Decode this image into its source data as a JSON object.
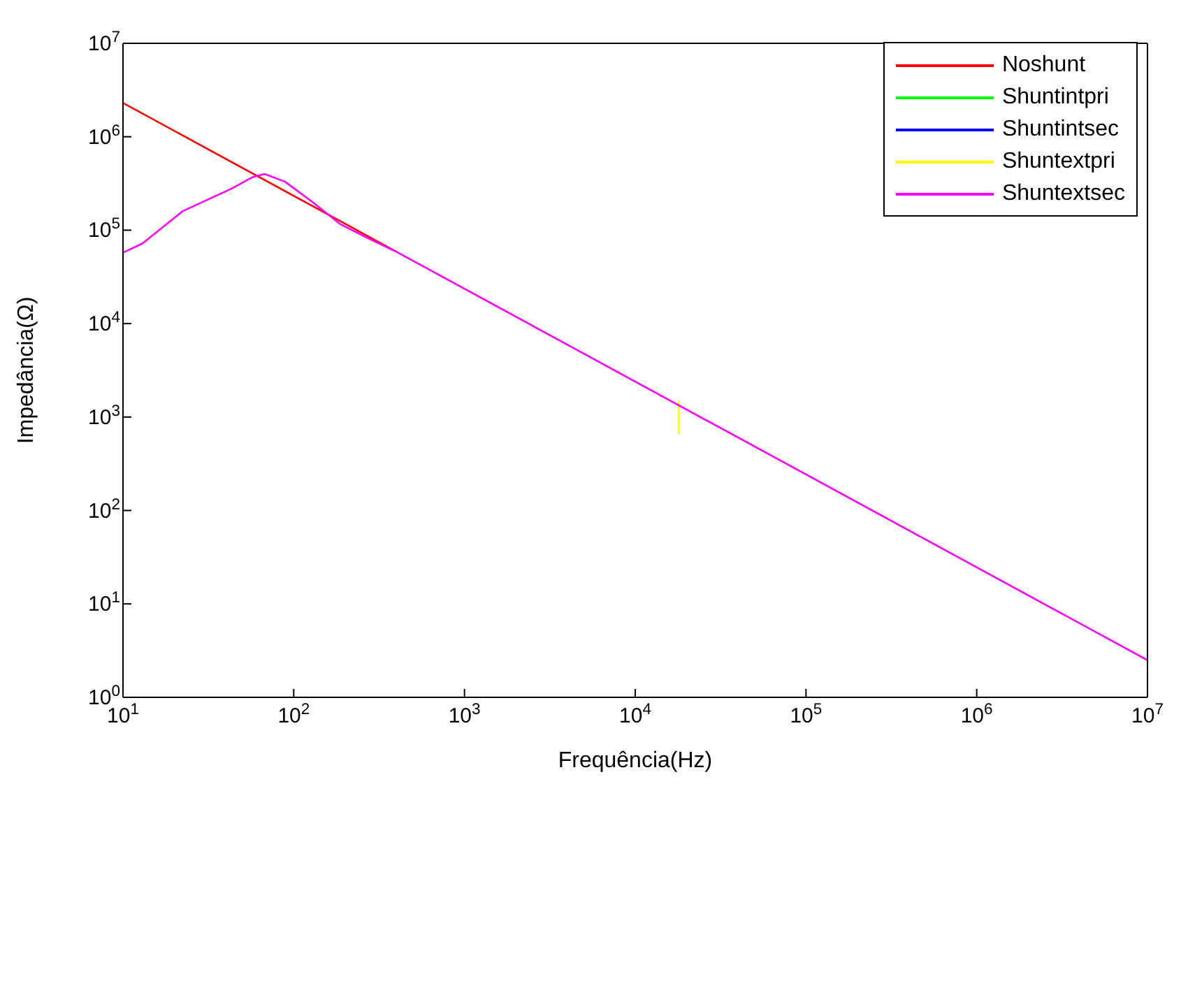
{
  "chart_data": {
    "type": "line",
    "xlabel": "Frequência(Hz)",
    "ylabel": "Impedância(Ω)",
    "log": "xy",
    "legend": "top right",
    "line_style": "solid",
    "marker": "none",
    "xlim": [
      10,
      10000000
    ],
    "ylim": [
      1,
      10000000
    ],
    "xticks": [
      {
        "value": 10,
        "label": "10$^{1}$"
      },
      {
        "value": 100,
        "label": "10$^{2}$"
      },
      {
        "value": 1000,
        "label": "10$^{3}$"
      },
      {
        "value": 10000,
        "label": "10$^{4}$"
      },
      {
        "value": 100000,
        "label": "10$^{5}$"
      },
      {
        "value": 1000000,
        "label": "10$^{6}$"
      },
      {
        "value": 10000000,
        "label": "10$^{7}$"
      }
    ],
    "yticks": [
      {
        "value": 1,
        "label": "10$^{0}$"
      },
      {
        "value": 10,
        "label": "10$^{1}$"
      },
      {
        "value": 100,
        "label": "10$^{2}$"
      },
      {
        "value": 1000,
        "label": "10$^{3}$"
      },
      {
        "value": 10000,
        "label": "10$^{4}$"
      },
      {
        "value": 100000,
        "label": "10$^{5}$"
      },
      {
        "value": 1000000,
        "label": "10$^{6}$"
      },
      {
        "value": 10000000,
        "label": "10$^{7}$"
      }
    ],
    "series": [
      {
        "name": "Noshunt",
        "color": "#ff0000",
        "x": [
          10,
          398
        ],
        "values": [
          2300000,
          59000
        ]
      },
      {
        "name": "Shuntintpri",
        "color": "#00ff00"
      },
      {
        "name": "Shuntintsec",
        "color": "#0000ff"
      },
      {
        "name": "Shuntextpri",
        "color": "#ffff00",
        "x": [
          18000,
          18000
        ],
        "values": [
          1500,
          660
        ]
      },
      {
        "name": "Shuntextsec",
        "color": "#ff00ff",
        "x": [
          10,
          13,
          22.4,
          42.7,
          57.5,
          67.6,
          89,
          129,
          186,
          269,
          398,
          10000000
        ],
        "values": [
          57500,
          72000,
          160000,
          275000,
          370000,
          400000,
          330000,
          200000,
          117000,
          83000,
          59000,
          2.5
        ]
      }
    ]
  }
}
